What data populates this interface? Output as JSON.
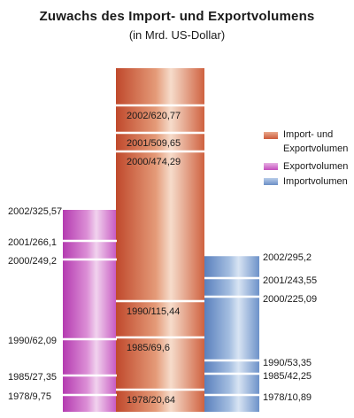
{
  "title": "Zuwachs des Import- und Exportvolumens",
  "subtitle": "(in Mrd. US-Dollar)",
  "colors": {
    "total": "#cc5a3a",
    "export": "#c44dbd",
    "import": "#6b8fc6"
  },
  "chart_data": {
    "type": "bar",
    "title": "Zuwachs des Import- und Exportvolumens",
    "subtitle": "(in Mrd. US-Dollar)",
    "unit": "Mrd. US-Dollar",
    "series": [
      {
        "name": "Exportvolumen",
        "color": "#c44dbd",
        "points": [
          {
            "year": 1978,
            "value": 9.75,
            "label": "1978/9,75"
          },
          {
            "year": 1985,
            "value": 27.35,
            "label": "1985/27,35"
          },
          {
            "year": 1990,
            "value": 62.09,
            "label": "1990/62,09"
          },
          {
            "year": 2000,
            "value": 249.2,
            "label": "2000/249,2"
          },
          {
            "year": 2001,
            "value": 266.1,
            "label": "2001/266,1"
          },
          {
            "year": 2002,
            "value": 325.57,
            "label": "2002/325,57"
          }
        ]
      },
      {
        "name": "Import- und Exportvolumen",
        "color": "#cc5a3a",
        "points": [
          {
            "year": 1978,
            "value": 20.64,
            "label": "1978/20,64"
          },
          {
            "year": 1985,
            "value": 69.6,
            "label": "1985/69,6"
          },
          {
            "year": 1990,
            "value": 115.44,
            "label": "1990/115,44"
          },
          {
            "year": 2000,
            "value": 474.29,
            "label": "2000/474,29"
          },
          {
            "year": 2001,
            "value": 509.65,
            "label": "2001/509,65"
          },
          {
            "year": 2002,
            "value": 620.77,
            "label": "2002/620,77"
          }
        ]
      },
      {
        "name": "Importvolumen",
        "color": "#6b8fc6",
        "points": [
          {
            "year": 1978,
            "value": 10.89,
            "label": "1978/10,89"
          },
          {
            "year": 1985,
            "value": 42.25,
            "label": "1985/42,25"
          },
          {
            "year": 1990,
            "value": 53.35,
            "label": "1990/53,35"
          },
          {
            "year": 2000,
            "value": 225.09,
            "label": "2000/225,09"
          },
          {
            "year": 2001,
            "value": 243.55,
            "label": "2001/243,55"
          },
          {
            "year": 2002,
            "value": 295.2,
            "label": "2002/295,2"
          }
        ]
      }
    ],
    "legend": {
      "position": "right",
      "items": [
        {
          "label": "Import- und Exportvolumen",
          "series": "Import- und Exportvolumen"
        },
        {
          "label": "Exportvolumen",
          "series": "Exportvolumen"
        },
        {
          "label": "Importvolumen",
          "series": "Importvolumen"
        }
      ]
    }
  },
  "legend": {
    "total_line1": "Import- und",
    "total_line2": "Exportvolumen",
    "export": "Exportvolumen",
    "import": "Importvolumen"
  }
}
